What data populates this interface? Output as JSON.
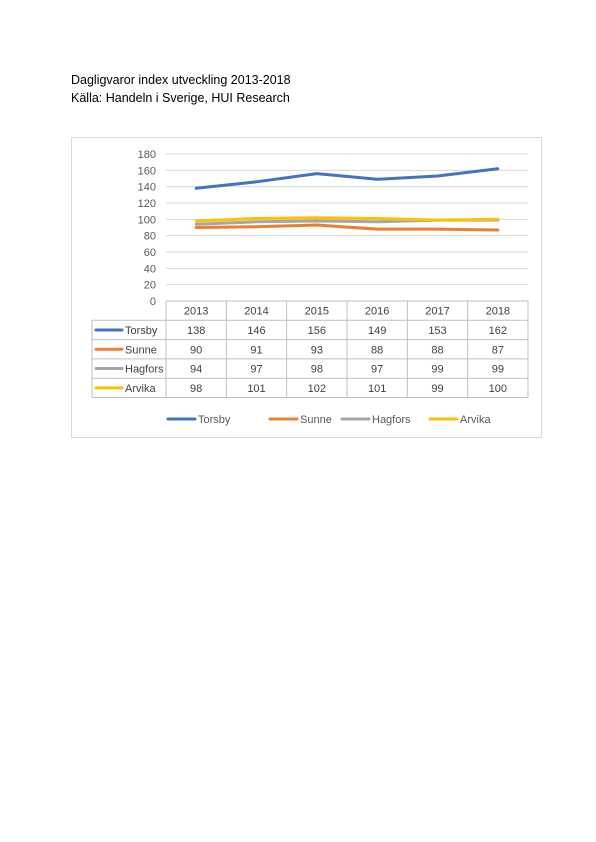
{
  "document": {
    "line1": "Dagligvaror index utveckling 2013-2018",
    "line2": "Källa: Handeln i Sverige, HUI Research"
  },
  "chart_data": {
    "type": "line",
    "title": "",
    "xlabel": "",
    "ylabel": "",
    "categories": [
      "2013",
      "2014",
      "2015",
      "2016",
      "2017",
      "2018"
    ],
    "ylim": [
      0,
      180
    ],
    "yticks": [
      0,
      20,
      40,
      60,
      80,
      100,
      120,
      140,
      160,
      180
    ],
    "grid": true,
    "legend_position": "bottom",
    "data_table": true,
    "series": [
      {
        "name": "Torsby",
        "values": [
          138,
          146,
          156,
          149,
          153,
          162
        ],
        "color": "#4472C4"
      },
      {
        "name": "Sunne",
        "values": [
          90,
          91,
          93,
          88,
          88,
          87
        ],
        "color": "#ED7D31"
      },
      {
        "name": "Hagfors",
        "values": [
          94,
          97,
          98,
          97,
          99,
          99
        ],
        "color": "#A5A5A5"
      },
      {
        "name": "Arvika",
        "values": [
          98,
          101,
          102,
          101,
          99,
          100
        ],
        "color": "#FFC000"
      }
    ]
  }
}
